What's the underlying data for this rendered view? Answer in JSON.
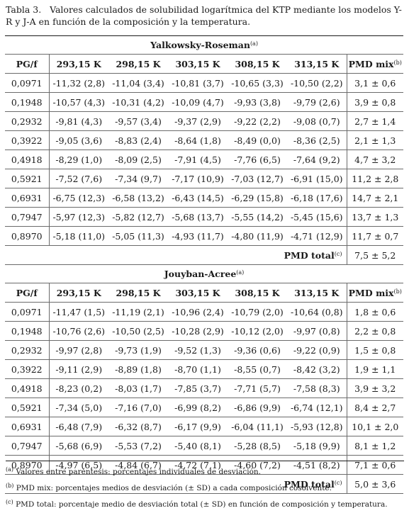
{
  "caption": {
    "label": "Tabla 3.",
    "text": "Valores calculados de solubilidad logarítmica del KTP mediante los modelos Y-R y J-A en función de la composición y la temperatura."
  },
  "headers": {
    "pg": "PG/f",
    "temps": [
      "293,15 K",
      "298,15 K",
      "303,15 K",
      "308,15 K",
      "313,15 K"
    ],
    "pmd_mix": "PMD mix",
    "pmd_mix_sup": "(b)"
  },
  "sections": [
    {
      "title": "Yalkowsky-Roseman",
      "title_sup": "(a)",
      "rows": [
        {
          "pg": "0,0971",
          "vals": [
            "-11,32 (2,8)",
            "-11,04 (3,4)",
            "-10,81 (3,7)",
            "-10,65 (3,3)",
            "-10,50 (2,2)"
          ],
          "pmd": "3,1 ± 0,6"
        },
        {
          "pg": "0,1948",
          "vals": [
            "-10,57 (4,3)",
            "-10,31 (4,2)",
            "-10,09 (4,7)",
            "-9,93 (3,8)",
            "-9,79 (2,6)"
          ],
          "pmd": "3,9 ± 0,8"
        },
        {
          "pg": "0,2932",
          "vals": [
            "-9,81 (4,3)",
            "-9,57 (3,4)",
            "-9,37 (2,9)",
            "-9,22 (2,2)",
            "-9,08 (0,7)"
          ],
          "pmd": "2,7 ± 1,4"
        },
        {
          "pg": "0,3922",
          "vals": [
            "-9,05 (3,6)",
            "-8,83 (2,4)",
            "-8,64 (1,8)",
            "-8,49 (0,0)",
            "-8,36 (2,5)"
          ],
          "pmd": "2,1 ± 1,3"
        },
        {
          "pg": "0,4918",
          "vals": [
            "-8,29 (1,0)",
            "-8,09 (2,5)",
            "-7,91 (4,5)",
            "-7,76 (6,5)",
            "-7,64 (9,2)"
          ],
          "pmd": "4,7 ± 3,2"
        },
        {
          "pg": "0,5921",
          "vals": [
            "-7,52 (7,6)",
            "-7,34 (9,7)",
            "-7,17 (10,9)",
            "-7,03 (12,7)",
            "-6,91 (15,0)"
          ],
          "pmd": "11,2 ± 2,8"
        },
        {
          "pg": "0,6931",
          "vals": [
            "-6,75 (12,3)",
            "-6,58 (13,2)",
            "-6,43 (14,5)",
            "-6,29 (15,8)",
            "-6,18 (17,6)"
          ],
          "pmd": "14,7 ± 2,1"
        },
        {
          "pg": "0,7947",
          "vals": [
            "-5,97 (12,3)",
            "-5,82 (12,7)",
            "-5,68 (13,7)",
            "-5,55 (14,2)",
            "-5,45 (15,6)"
          ],
          "pmd": "13,7 ± 1,3"
        },
        {
          "pg": "0,8970",
          "vals": [
            "-5,18 (11,0)",
            "-5,05 (11,3)",
            "-4,93 (11,7)",
            "-4,80 (11,9)",
            "-4,71 (12,9)"
          ],
          "pmd": "11,7 ± 0,7"
        }
      ],
      "total_label": "PMD total",
      "total_sup": "(c)",
      "total_value": "7,5 ± 5,2"
    },
    {
      "title": "Jouyban-Acree",
      "title_sup": "(a)",
      "rows": [
        {
          "pg": "0,0971",
          "vals": [
            "-11,47 (1,5)",
            "-11,19 (2,1)",
            "-10,96 (2,4)",
            "-10,79 (2,0)",
            "-10,64 (0,8)"
          ],
          "pmd": "1,8 ± 0,6"
        },
        {
          "pg": "0,1948",
          "vals": [
            "-10,76 (2,6)",
            "-10,50 (2,5)",
            "-10,28 (2,9)",
            "-10,12 (2,0)",
            "-9,97 (0,8)"
          ],
          "pmd": "2,2 ± 0,8"
        },
        {
          "pg": "0,2932",
          "vals": [
            "-9,97 (2,8)",
            "-9,73 (1,9)",
            "-9,52 (1,3)",
            "-9,36 (0,6)",
            "-9,22 (0,9)"
          ],
          "pmd": "1,5 ± 0,8"
        },
        {
          "pg": "0,3922",
          "vals": [
            "-9,11 (2,9)",
            "-8,89 (1,8)",
            "-8,70 (1,1)",
            "-8,55 (0,7)",
            "-8,42 (3,2)"
          ],
          "pmd": "1,9 ± 1,1"
        },
        {
          "pg": "0,4918",
          "vals": [
            "-8,23 (0,2)",
            "-8,03 (1,7)",
            "-7,85 (3,7)",
            "-7,71 (5,7)",
            "-7,58 (8,3)"
          ],
          "pmd": "3,9 ± 3,2"
        },
        {
          "pg": "0,5921",
          "vals": [
            "-7,34 (5,0)",
            "-7,16 (7,0)",
            "-6,99 (8,2)",
            "-6,86 (9,9)",
            "-6,74 (12,1)"
          ],
          "pmd": "8,4 ± 2,7"
        },
        {
          "pg": "0,6931",
          "vals": [
            "-6,48 (7,9)",
            "-6,32 (8,7)",
            "-6,17 (9,9)",
            "-6,04 (11,1)",
            "-5,93 (12,8)"
          ],
          "pmd": "10,1 ± 2,0"
        },
        {
          "pg": "0,7947",
          "vals": [
            "-5,68 (6,9)",
            "-5,53 (7,2)",
            "-5,40 (8,1)",
            "-5,28 (8,5)",
            "-5,18 (9,9)"
          ],
          "pmd": "8,1 ± 1,2"
        },
        {
          "pg": "0,8970",
          "vals": [
            "-4,97 (6,5)",
            "-4,84 (6,7)",
            "-4,72 (7,1)",
            "-4,60 (7,2)",
            "-4,51 (8,2)"
          ],
          "pmd": "7,1 ± 0,6"
        }
      ],
      "total_label": "PMD total",
      "total_sup": "(c)",
      "total_value": "5,0 ± 3,6"
    }
  ],
  "footnotes": [
    {
      "mark": "(a)",
      "text": " Valores entre paréntesis: porcentajes individuales de desviación."
    },
    {
      "mark": "(b)",
      "text": " PMD mix: porcentajes medios de desviación (± SD) a cada composición cosolvente."
    },
    {
      "mark": "(c)",
      "text": " PMD total: porcentaje medio de desviación total (± SD) en función de composición y temperatura."
    }
  ]
}
